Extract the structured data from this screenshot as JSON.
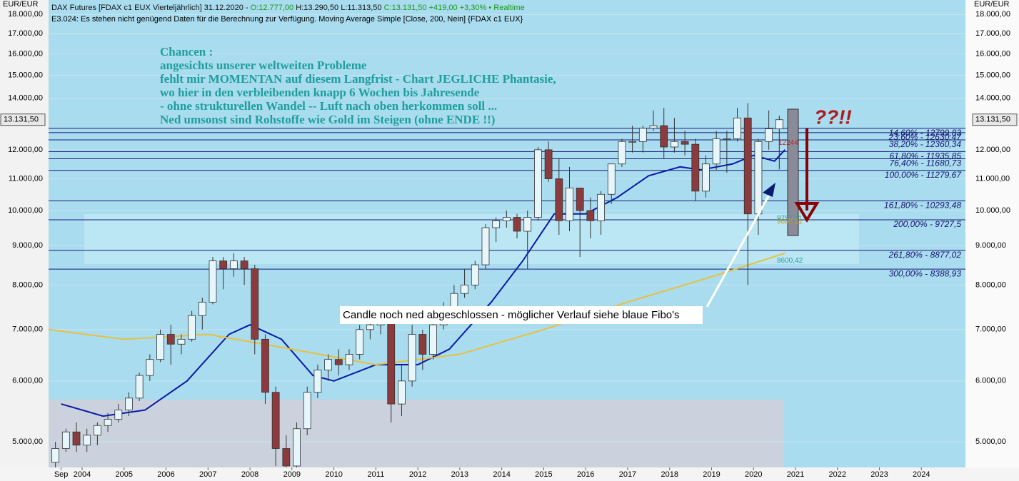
{
  "chart_data": {
    "type": "candlestick",
    "header": [
      "DAX Futures [FDAX c1 EUX Vierteljährlich] 31.12.2020 -",
      "O:12.777,00",
      "H:13.290,50 L:11.313,50",
      "C:13.131,50 +419,00 +3,30%",
      "• Realtime"
    ],
    "subheader": "E3.024: Es stehen nicht genügend Daten für die Berechnung zur Verfügung. Moving Average Simple [Close, 200, Nein] {FDAX c1 EUX}",
    "axis_unit": "EUR/EUR",
    "last_price": {
      "value": 13131.5,
      "label": "13.131,50"
    },
    "annotation": [
      "Chancen :",
      "angesichts unserer weltweiten Probleme",
      "fehlt mir MOMENTAN auf diesem Langfrist - Chart JEGLICHE  Phantasie,",
      "wo hier in den verbleibenden knapp 6 Wochen bis Jahresende",
      "-  ohne strukturellen Wandel -- Luft nach oben herkommen soll ...",
      "Ned umsonst sind Rohstoffe wie Gold im Steigen (ohne ENDE !!)"
    ],
    "question": "??!!",
    "note": "Candle noch ned abgeschlossen  -  möglicher Verlauf siehe blaue Fibo's",
    "small_labels": [
      {
        "value": 12244,
        "label": "12244"
      },
      {
        "value": 9757.11,
        "label": "9757,11"
      },
      {
        "value": 9667.11,
        "label": "9667,11"
      },
      {
        "value": 8600.42,
        "label": "8600,42"
      }
    ],
    "levels": [
      {
        "value": 12799.83,
        "label": "14,60% - 12799,83"
      },
      {
        "value": 12630.47,
        "label": "23,60% - 12630,47"
      },
      {
        "value": 12360.34,
        "label": "38,20% - 12360,34"
      },
      {
        "value": 11935.85,
        "label": "61,80% - 11935,85"
      },
      {
        "value": 11680.73,
        "label": "76,40% - 11680,73"
      },
      {
        "value": 11279.67,
        "label": "100,00% - 11279,67"
      },
      {
        "value": 10293.48,
        "label": "161,80% - 10293,48"
      },
      {
        "value": 9727.5,
        "label": "200,00% - 9727,5"
      },
      {
        "value": 8877.02,
        "label": "261,80% - 8877,02"
      },
      {
        "value": 8388.93,
        "label": "300,00% - 8388,93"
      }
    ],
    "x": [
      2003.5,
      2003.75,
      2004,
      2004.25,
      2004.5,
      2004.75,
      2005,
      2005.25,
      2005.5,
      2005.75,
      2006,
      2006.25,
      2006.5,
      2006.75,
      2007,
      2007.25,
      2007.5,
      2007.75,
      2008,
      2008.25,
      2008.5,
      2008.75,
      2009,
      2009.25,
      2009.5,
      2009.75,
      2010,
      2010.25,
      2010.5,
      2010.75,
      2011,
      2011.25,
      2011.5,
      2011.75,
      2012,
      2012.25,
      2012.5,
      2012.75,
      2013,
      2013.25,
      2013.5,
      2013.75,
      2014,
      2014.25,
      2014.5,
      2014.75,
      2015,
      2015.25,
      2015.5,
      2015.75,
      2016,
      2016.25,
      2016.5,
      2016.75,
      2017,
      2017.25,
      2017.5,
      2017.75,
      2018,
      2018.25,
      2018.5,
      2018.75,
      2019,
      2019.25,
      2019.5,
      2019.75,
      2020,
      2020.25,
      2020.5,
      2020.75
    ],
    "open": [
      4700,
      4900,
      5150,
      4950,
      5100,
      5250,
      5350,
      5500,
      5700,
      6100,
      6400,
      6900,
      6700,
      6800,
      7300,
      7600,
      8600,
      8400,
      8600,
      8400,
      6800,
      5800,
      4900,
      4650,
      5200,
      5800,
      6200,
      6400,
      6300,
      6500,
      7000,
      7100,
      7200,
      5600,
      6000,
      6900,
      6500,
      7100,
      7500,
      7800,
      8000,
      8500,
      9500,
      9700,
      9800,
      9400,
      9800,
      12000,
      11000,
      9700,
      10700,
      10000,
      9700,
      10500,
      11500,
      12300,
      12300,
      12800,
      12900,
      12100,
      12300,
      12200,
      10600,
      11500,
      12400,
      12400,
      13200,
      9900,
      12300,
      12777
    ],
    "high": [
      5000,
      5200,
      5300,
      5200,
      5300,
      5450,
      5600,
      5800,
      6150,
      6500,
      7000,
      7100,
      6900,
      7400,
      7700,
      8700,
      8700,
      8800,
      8700,
      8500,
      6900,
      5900,
      5100,
      5300,
      5900,
      6300,
      6500,
      6600,
      6600,
      7100,
      7300,
      7400,
      7300,
      6300,
      7100,
      7000,
      7200,
      7600,
      8000,
      8400,
      8600,
      9600,
      9800,
      10000,
      9900,
      10000,
      12100,
      12300,
      11700,
      11400,
      10700,
      10400,
      10600,
      11500,
      12400,
      12900,
      12900,
      13500,
      13600,
      13200,
      12700,
      12400,
      11800,
      12700,
      12700,
      13600,
      13800,
      12400,
      13500,
      13290.5
    ],
    "low": [
      4600,
      4850,
      4850,
      4850,
      4950,
      5150,
      5300,
      5400,
      5650,
      6000,
      6350,
      6300,
      6500,
      6750,
      7000,
      7550,
      7900,
      8200,
      8000,
      6500,
      5600,
      4650,
      4500,
      4600,
      5100,
      5700,
      6000,
      6100,
      6200,
      6400,
      6800,
      6900,
      5300,
      5400,
      5900,
      6200,
      6400,
      7000,
      7400,
      7700,
      7900,
      8400,
      9100,
      9500,
      9200,
      8400,
      9700,
      10900,
      9300,
      9400,
      8700,
      9200,
      9300,
      10200,
      11400,
      11900,
      11900,
      12700,
      11700,
      11900,
      11800,
      10300,
      10400,
      11300,
      11200,
      12300,
      8000,
      9300,
      12000,
      11313.5
    ],
    "close": [
      4900,
      5150,
      4950,
      5100,
      5250,
      5350,
      5500,
      5700,
      6100,
      6400,
      6900,
      6700,
      6800,
      7300,
      7600,
      8600,
      8400,
      8600,
      8400,
      6800,
      5800,
      4900,
      4650,
      5200,
      5800,
      6200,
      6400,
      6300,
      6500,
      7000,
      7100,
      7200,
      5600,
      6000,
      6900,
      6500,
      7100,
      7500,
      7800,
      8000,
      8500,
      9500,
      9700,
      9800,
      9400,
      9800,
      12000,
      11000,
      9700,
      10700,
      10000,
      9700,
      10500,
      11500,
      12300,
      12300,
      12800,
      12900,
      12100,
      12300,
      12200,
      10600,
      11500,
      12400,
      12400,
      13200,
      9900,
      12300,
      12777,
      13131.5
    ],
    "up_color": "#e6f6fb",
    "down_color": "#8b3b3e",
    "lines": [
      {
        "color": "#0a1aa8",
        "x": [
          2003.5,
          2004.5,
          2005.5,
          2006.5,
          2007.5,
          2008,
          2008.75,
          2009.5,
          2010,
          2011,
          2012,
          2012.75,
          2013.75,
          2014.5,
          2015.25,
          2016,
          2016.75,
          2017.5,
          2018.25,
          2018.75,
          2019.5,
          2020,
          2020.5,
          2020.75
        ],
        "values": [
          5600,
          5400,
          5500,
          6000,
          6900,
          7100,
          6800,
          6100,
          6000,
          6300,
          6300,
          6600,
          7600,
          8600,
          9900,
          9900,
          10400,
          11100,
          11400,
          11300,
          11500,
          11800,
          11600,
          12000
        ]
      },
      {
        "color": "#e8c040",
        "x": [
          2003.2,
          2005,
          2007,
          2009,
          2011,
          2013,
          2015,
          2017,
          2019,
          2020.75
        ],
        "values": [
          7000,
          6800,
          6900,
          6600,
          6300,
          6500,
          7000,
          7600,
          8200,
          8800
        ]
      }
    ],
    "xlim": [
      2003.2,
      2025.05
    ],
    "xticks": [
      {
        "value": 2003.5,
        "label": "Sep"
      },
      2004,
      2005,
      2006,
      2007,
      2008,
      2009,
      2010,
      2011,
      2012,
      2013,
      2014,
      2015,
      2016,
      2017,
      2018,
      2019,
      2020,
      2021,
      2022,
      2023,
      2024
    ],
    "ylim": [
      4630,
      18800
    ],
    "log_y": true,
    "yticks": [
      {
        "value": 5000,
        "label": "5.000,00"
      },
      {
        "value": 6000,
        "label": "6.000,00"
      },
      {
        "value": 7000,
        "label": "7.000,00"
      },
      {
        "value": 8000,
        "label": "8.000,00"
      },
      {
        "value": 9000,
        "label": "9.000,00"
      },
      {
        "value": 10000,
        "label": "10.000,00"
      },
      {
        "value": 11000,
        "label": "11.000,00"
      },
      {
        "value": 12000,
        "label": "12.000,00"
      },
      {
        "value": 14000,
        "label": "14.000,00"
      },
      {
        "value": 15000,
        "label": "15.000,00"
      },
      {
        "value": 16000,
        "label": "16.000,00"
      },
      {
        "value": 17000,
        "label": "17.000,00"
      },
      {
        "value": 18000,
        "label": "18.000,00"
      }
    ]
  }
}
